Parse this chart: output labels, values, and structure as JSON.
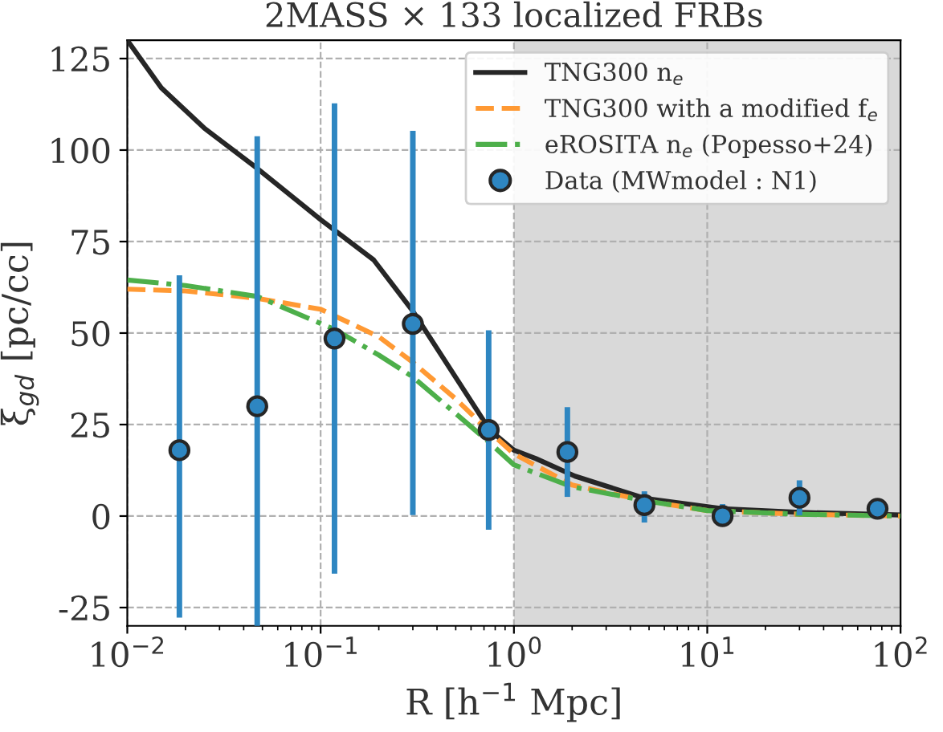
{
  "chart_data": {
    "type": "line",
    "title": "2MASS × 133 localized FRBs",
    "xlabel": "R [h$^{−1}$ Mpc]",
    "ylabel": "ξ$_{gd}$ [pc/cc]",
    "log": "x",
    "xlim": [
      0.01,
      100
    ],
    "ylim": [
      -30,
      130
    ],
    "xticks": [
      {
        "value": 0.01,
        "label": "10$^{−2}$"
      },
      {
        "value": 0.1,
        "label": "10$^{−1}$"
      },
      {
        "value": 1,
        "label": "10$^{0}$"
      },
      {
        "value": 10,
        "label": "10$^{1}$"
      },
      {
        "value": 100,
        "label": "10$^{2}$"
      }
    ],
    "yticks": [
      -25,
      0,
      25,
      50,
      75,
      100,
      125
    ],
    "grid": true,
    "legend": "top right",
    "bands": [
      {
        "axis": "x",
        "from": 1,
        "to": 100,
        "color": "#d9d9d9"
      }
    ],
    "series": [
      {
        "name": "TNG300 n$_{e}$",
        "color": "#262626",
        "line_style": "solid",
        "x": [
          0.01,
          0.015,
          0.025,
          0.047,
          0.1,
          0.188,
          0.3,
          0.75,
          1.0,
          1.3,
          2.07,
          4.8,
          12,
          30,
          100
        ],
        "values": [
          130,
          117,
          106,
          95,
          81,
          70,
          56,
          23.5,
          18,
          15.7,
          10.9,
          4.8,
          2,
          1,
          0.3
        ]
      },
      {
        "name": "TNG300 with a modified f$_{e}$",
        "color": "#ff9933",
        "line_style": "dashed",
        "x": [
          0.01,
          0.02,
          0.047,
          0.1,
          0.2,
          0.3,
          0.5,
          0.75,
          1.0,
          2,
          5,
          10,
          30,
          100
        ],
        "values": [
          62,
          61.5,
          59.5,
          56.5,
          49,
          42,
          32,
          23,
          17,
          8.5,
          4,
          1.5,
          0.5,
          0
        ]
      },
      {
        "name": "eROSITA n$_{e}$ (Popesso+24)",
        "color": "#4daf4a",
        "line_style": "dashdot",
        "x": [
          0.01,
          0.02,
          0.047,
          0.118,
          0.2,
          0.3,
          0.5,
          0.75,
          1.0,
          2,
          5,
          10,
          30,
          100
        ],
        "values": [
          64.5,
          63,
          60,
          51,
          44,
          38,
          28,
          20,
          14,
          8,
          4,
          1.5,
          0.5,
          0
        ]
      },
      {
        "name": "Data (MWmodel : N1)",
        "type": "scatter",
        "color": "#2e86c1",
        "marker": "circle",
        "x": [
          0.0186,
          0.047,
          0.118,
          0.3,
          0.74,
          1.89,
          4.73,
          12,
          30,
          76
        ],
        "values": [
          18,
          30,
          48.5,
          52.5,
          23.5,
          17.5,
          3,
          0,
          5,
          2
        ],
        "errors": [
          [
            -27,
            65
          ],
          [
            -30,
            103
          ],
          [
            -15,
            112
          ],
          [
            1,
            104.5
          ],
          [
            -3,
            50
          ],
          [
            6,
            29
          ],
          [
            -1,
            6
          ],
          [
            -2,
            2.5
          ],
          [
            1,
            9
          ],
          [
            0,
            4
          ]
        ]
      }
    ]
  }
}
